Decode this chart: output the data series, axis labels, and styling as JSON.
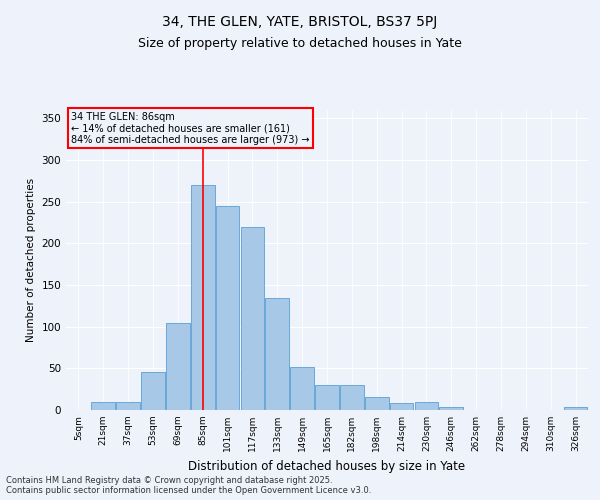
{
  "title1": "34, THE GLEN, YATE, BRISTOL, BS37 5PJ",
  "title2": "Size of property relative to detached houses in Yate",
  "xlabel": "Distribution of detached houses by size in Yate",
  "ylabel": "Number of detached properties",
  "bin_labels": [
    "5sqm",
    "21sqm",
    "37sqm",
    "53sqm",
    "69sqm",
    "85sqm",
    "101sqm",
    "117sqm",
    "133sqm",
    "149sqm",
    "165sqm",
    "182sqm",
    "198sqm",
    "214sqm",
    "230sqm",
    "246sqm",
    "262sqm",
    "278sqm",
    "294sqm",
    "310sqm",
    "326sqm"
  ],
  "bar_values": [
    0,
    10,
    10,
    46,
    105,
    270,
    245,
    220,
    135,
    52,
    30,
    30,
    16,
    8,
    10,
    4,
    0,
    0,
    0,
    0,
    4
  ],
  "bar_color": "#a8c8e8",
  "bar_edge_color": "#5a9fd4",
  "annotation_title": "34 THE GLEN: 86sqm",
  "annotation_line1": "← 14% of detached houses are smaller (161)",
  "annotation_line2": "84% of semi-detached houses are larger (973) →",
  "ylim": [
    0,
    360
  ],
  "yticks": [
    0,
    50,
    100,
    150,
    200,
    250,
    300,
    350
  ],
  "footer1": "Contains HM Land Registry data © Crown copyright and database right 2025.",
  "footer2": "Contains public sector information licensed under the Open Government Licence v3.0.",
  "bg_color": "#eef2fb",
  "grid_color": "#ffffff",
  "title_fontsize": 10,
  "subtitle_fontsize": 9
}
